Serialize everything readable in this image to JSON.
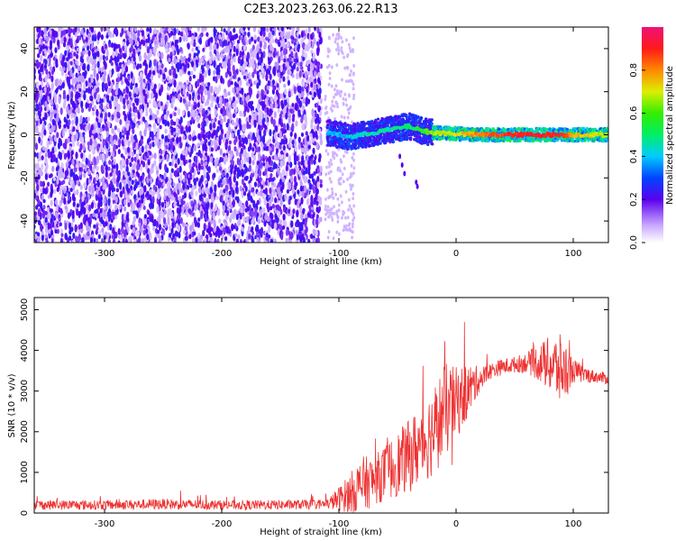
{
  "figure_title": "C2E3.2023.263.06.22.R13",
  "chart_data": [
    {
      "type": "heatmap",
      "xlabel": "Height of straight line (km)",
      "ylabel": "Frequency (Hz)",
      "xlim": [
        -360,
        130
      ],
      "ylim": [
        -50,
        50
      ],
      "xticks": [
        -300,
        -200,
        -100,
        0,
        100
      ],
      "yticks": [
        -40,
        -20,
        0,
        20,
        40
      ],
      "colorbar": {
        "label": "Normalized spectral amplitude",
        "range": [
          0,
          1
        ],
        "ticks": [
          0.0,
          0.2,
          0.4,
          0.6,
          0.8
        ]
      },
      "regions": [
        {
          "x_range": [
            -360,
            -115
          ],
          "freq_range": [
            -50,
            50
          ],
          "amplitude_level": 0.15
        },
        {
          "x_range": [
            -110,
            -20
          ],
          "freq_center": 2,
          "freq_halfwidth": 6,
          "amplitude_level": 0.5
        },
        {
          "x_range": [
            -20,
            130
          ],
          "freq_center": 0,
          "freq_halfwidth": 3,
          "amplitude_level": 0.85
        }
      ],
      "ridge_x": [
        -110,
        -90,
        -70,
        -50,
        -40,
        -30,
        -20,
        0,
        20,
        40,
        60,
        80,
        90,
        100,
        130
      ],
      "ridge_freq": [
        1,
        -1,
        1,
        3,
        4,
        2,
        1,
        0.5,
        0,
        0,
        0,
        0,
        0,
        0,
        0
      ],
      "ridge_amplitude": [
        0.4,
        0.45,
        0.5,
        0.5,
        0.55,
        0.6,
        0.7,
        0.75,
        0.85,
        0.9,
        0.95,
        0.95,
        0.95,
        0.8,
        0.7
      ]
    },
    {
      "type": "line",
      "xlabel": "Height of straight line (km)",
      "ylabel": "SNR (10 * v/v)",
      "xlim": [
        -360,
        130
      ],
      "ylim": [
        0,
        5300
      ],
      "xticks": [
        -300,
        -200,
        -100,
        0,
        100
      ],
      "yticks": [
        0,
        1000,
        2000,
        3000,
        4000,
        5000
      ],
      "series": [
        {
          "color": "#ee3333",
          "x": [
            -360,
            -300,
            -250,
            -200,
            -150,
            -110,
            -100,
            -90,
            -80,
            -70,
            -60,
            -50,
            -40,
            -30,
            -20,
            -10,
            0,
            10,
            20,
            30,
            40,
            50,
            60,
            70,
            80,
            90,
            100,
            110,
            120,
            130
          ],
          "y": [
            200,
            200,
            220,
            200,
            200,
            220,
            350,
            500,
            700,
            800,
            1000,
            1200,
            1400,
            1700,
            2000,
            2500,
            2700,
            3000,
            3300,
            3500,
            3600,
            3650,
            3700,
            3700,
            3650,
            3500,
            3500,
            3400,
            3350,
            3300
          ],
          "noise_amplitude": [
            120,
            120,
            130,
            120,
            120,
            120,
            300,
            500,
            700,
            600,
            700,
            800,
            900,
            1000,
            1100,
            1200,
            900,
            700,
            300,
            200,
            200,
            200,
            250,
            450,
            700,
            900,
            300,
            200,
            150,
            150
          ]
        }
      ]
    }
  ]
}
